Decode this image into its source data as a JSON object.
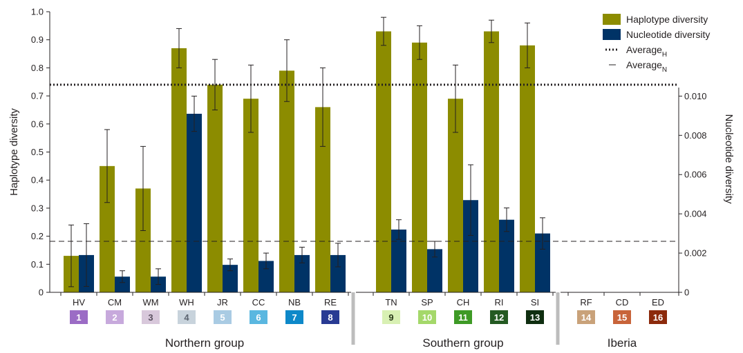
{
  "chart_data": {
    "type": "bar",
    "categories": [
      "HV",
      "CM",
      "WM",
      "WH",
      "JR",
      "CC",
      "NB",
      "RE",
      "TN",
      "SP",
      "CH",
      "RI",
      "SI",
      "RF",
      "CD",
      "ED"
    ],
    "population_numbers": [
      "1",
      "2",
      "3",
      "4",
      "5",
      "6",
      "7",
      "8",
      "9",
      "10",
      "11",
      "12",
      "13",
      "14",
      "15",
      "16"
    ],
    "badge_colors": [
      "#9b6cc5",
      "#c7a9dc",
      "#d8c8db",
      "#c8d3dc",
      "#a9cbe3",
      "#5ab7e0",
      "#0d88c9",
      "#283a93",
      "#d8f0b3",
      "#a4d86a",
      "#3e9a26",
      "#245a22",
      "#0f2e10",
      "#c9a27a",
      "#c8643a",
      "#8c2a0c"
    ],
    "badge_text_colors": [
      "#ffffff",
      "#ffffff",
      "#5a5060",
      "#5b6470",
      "#ffffff",
      "#ffffff",
      "#ffffff",
      "#ffffff",
      "#2a3a1a",
      "#ffffff",
      "#ffffff",
      "#ffffff",
      "#ffffff",
      "#ffffff",
      "#ffffff",
      "#ffffff"
    ],
    "groups": [
      {
        "label": "Northern group",
        "start": 0,
        "end": 7
      },
      {
        "label": "Southern group",
        "start": 8,
        "end": 12
      },
      {
        "label": "Iberia",
        "start": 13,
        "end": 15
      }
    ],
    "series": [
      {
        "name": "Haplotype diversity",
        "axis": "left",
        "color": "#8c8c00",
        "values": [
          0.13,
          0.45,
          0.37,
          0.87,
          0.74,
          0.69,
          0.79,
          0.66,
          0.93,
          0.89,
          0.69,
          0.93,
          0.88,
          null,
          null,
          null
        ],
        "errors": [
          0.11,
          0.13,
          0.15,
          0.07,
          0.09,
          0.12,
          0.11,
          0.14,
          0.05,
          0.06,
          0.12,
          0.04,
          0.08,
          null,
          null,
          null
        ]
      },
      {
        "name": "Nucleotide diversity",
        "axis": "right",
        "color": "#003366",
        "values": [
          0.0019,
          0.0008,
          0.0008,
          0.0091,
          0.0014,
          0.0016,
          0.0019,
          0.0019,
          0.0032,
          0.0022,
          0.0047,
          0.0037,
          0.003,
          null,
          null,
          null
        ],
        "errors": [
          0.0016,
          0.0003,
          0.0004,
          0.0009,
          0.0003,
          0.0004,
          0.0004,
          0.0006,
          0.0005,
          0.0004,
          0.0018,
          0.0006,
          0.0008,
          null,
          null,
          null
        ]
      }
    ],
    "averages": [
      {
        "label": "Average",
        "subscript": "H",
        "value": 0.74,
        "axis": "left",
        "style": "dotted"
      },
      {
        "label": "Average",
        "subscript": "N",
        "value": 0.0026,
        "axis": "right",
        "style": "dashed"
      }
    ],
    "yaxis_left": {
      "label": "Haplotype diversity",
      "range": [
        0,
        1.0
      ],
      "ticks": [
        "0",
        "0.1",
        "0.2",
        "0.3",
        "0.4",
        "0.5",
        "0.6",
        "0.7",
        "0.8",
        "0.9",
        "1.0"
      ]
    },
    "yaxis_right": {
      "label": "Nucleotide diversity",
      "range": [
        0,
        0.0143
      ],
      "ticks": [
        "0",
        "0.002",
        "0.004",
        "0.006",
        "0.008",
        "0.010"
      ]
    },
    "legend_position": "top-right"
  }
}
